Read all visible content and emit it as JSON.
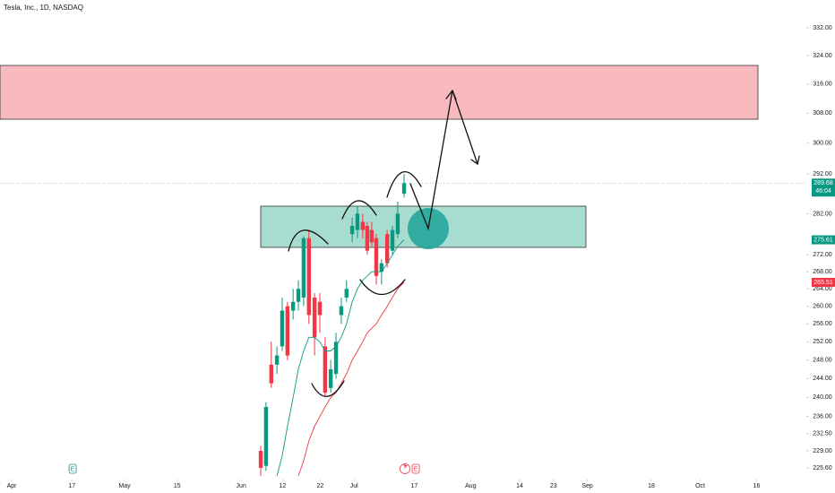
{
  "chart_data": {
    "type": "candlestick",
    "title": "Tesla, Inc., 1D, NASDAQ",
    "log_scale": true,
    "up_color": "#089981",
    "down_color": "#f23645",
    "ylim": [
      223.3,
      340.2
    ],
    "yticks": [
      {
        "value": 332,
        "label": "332.00"
      },
      {
        "value": 324,
        "label": "324.00"
      },
      {
        "value": 316,
        "label": "316.00"
      },
      {
        "value": 308,
        "label": "308.00"
      },
      {
        "value": 300,
        "label": "300.00"
      },
      {
        "value": 292,
        "label": "292.00"
      },
      {
        "value": 282,
        "label": "282.00"
      },
      {
        "value": 272,
        "label": "272.00"
      },
      {
        "value": 268,
        "label": "268.00"
      },
      {
        "value": 264,
        "label": "264.00"
      },
      {
        "value": 260,
        "label": "260.00"
      },
      {
        "value": 256,
        "label": "256.00"
      },
      {
        "value": 252,
        "label": "252.00"
      },
      {
        "value": 248,
        "label": "248.00"
      },
      {
        "value": 244,
        "label": "244.00"
      },
      {
        "value": 240,
        "label": "240.00"
      },
      {
        "value": 236,
        "label": "236.00"
      },
      {
        "value": 232.5,
        "label": "232.50"
      },
      {
        "value": 229,
        "label": "229.00"
      },
      {
        "value": 225.6,
        "label": "225.60"
      }
    ],
    "xlim": [
      -3.1,
      211.2
    ],
    "xticks": [
      {
        "value": 0,
        "label": "Apr"
      },
      {
        "value": 16,
        "label": "17"
      },
      {
        "value": 30,
        "label": "May"
      },
      {
        "value": 44,
        "label": "15"
      },
      {
        "value": 61,
        "label": "Jun"
      },
      {
        "value": 72,
        "label": "12"
      },
      {
        "value": 82,
        "label": "22"
      },
      {
        "value": 91,
        "label": "Jul"
      },
      {
        "value": 107,
        "label": "17"
      },
      {
        "value": 122,
        "label": "Aug"
      },
      {
        "value": 135,
        "label": "14"
      },
      {
        "value": 144,
        "label": "23"
      },
      {
        "value": 153,
        "label": "Sep"
      },
      {
        "value": 170,
        "label": "18"
      },
      {
        "value": 183,
        "label": "Oct"
      },
      {
        "value": 198,
        "label": "16"
      }
    ],
    "candles": {
      "x": [
        66.2,
        67.6,
        69.0,
        70.5,
        71.9,
        73.3,
        74.8,
        76.2,
        77.6,
        79.0,
        80.5,
        81.9,
        83.3,
        84.8,
        86.2,
        87.6,
        89.0,
        90.5,
        91.9,
        93.3,
        94.5,
        95.7,
        96.9,
        98.3,
        99.8,
        101.2,
        102.6,
        104.3
      ],
      "open": [
        229,
        226,
        247,
        247,
        251,
        260,
        259,
        261,
        262,
        276,
        262,
        261,
        251,
        242,
        245,
        258,
        262,
        277,
        278,
        280,
        279,
        278,
        276,
        268,
        277,
        273,
        277,
        287
      ],
      "high": [
        230,
        239,
        252,
        251,
        262,
        261,
        264,
        266,
        276.5,
        278,
        263,
        263,
        253,
        248,
        254,
        262,
        266,
        281,
        284,
        282,
        280,
        280,
        277,
        271,
        278,
        279,
        285,
        292
      ],
      "low": [
        224,
        225,
        242,
        245,
        250,
        248,
        257,
        259,
        260,
        256,
        249,
        254,
        240,
        241,
        244,
        256,
        261,
        275,
        276,
        276,
        272,
        274,
        265,
        265,
        269,
        272,
        276,
        286
      ],
      "close": [
        225.6,
        238,
        243,
        249,
        259,
        249,
        261,
        264,
        276,
        258,
        253,
        258,
        241,
        246,
        252,
        260,
        264,
        279,
        282,
        278,
        273,
        275,
        267,
        270,
        270,
        278,
        282,
        289.68
      ]
    },
    "series": [
      {
        "color": "#089981",
        "values": [
          null,
          null,
          null,
          224,
          228,
          234,
          240,
          246,
          250,
          253,
          253,
          252,
          250,
          250,
          251,
          253,
          256,
          261,
          264,
          266,
          267,
          268,
          268,
          268,
          270,
          272,
          274,
          275.61
        ]
      },
      {
        "color": "#f23645",
        "values": [
          null,
          null,
          null,
          null,
          null,
          null,
          null,
          224,
          227,
          231,
          234,
          236,
          238,
          240,
          241,
          243,
          245,
          248,
          250,
          252,
          254,
          255,
          256,
          258,
          260,
          262,
          264,
          265.51
        ]
      }
    ],
    "price_labels": [
      {
        "value": 289.68,
        "color": "#089981"
      },
      {
        "value": 275.61,
        "color": "#089981"
      },
      {
        "value": 265.51,
        "color": "#f23645"
      }
    ],
    "countdown": "46:04",
    "events": [
      {
        "x": 16.2,
        "label": "E",
        "color": "#089981"
      },
      {
        "x": 107.4,
        "label": "E",
        "color": "#f23645"
      }
    ]
  }
}
